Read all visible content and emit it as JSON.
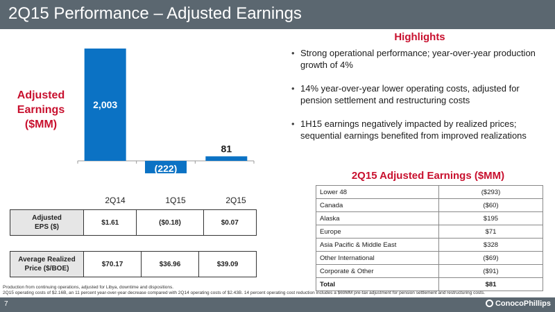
{
  "header": {
    "title": "2Q15 Performance – Adjusted Earnings"
  },
  "side_label": {
    "line1": "Adjusted",
    "line2": "Earnings",
    "line3": "($MM)"
  },
  "chart_data": {
    "type": "bar",
    "categories": [
      "2Q14",
      "1Q15",
      "2Q15"
    ],
    "values": [
      2003,
      -222,
      81
    ],
    "labels": [
      "2,003",
      "(222)",
      "81"
    ],
    "bar_color": "#0b72c4",
    "negative_label_color": "#ffffff",
    "ylim": [
      -222,
      2003
    ],
    "grid": false
  },
  "eps_table": {
    "header_line1": "Adjusted",
    "header_line2": "EPS ($)",
    "values": [
      "$1.61",
      "($0.18)",
      "$0.07"
    ]
  },
  "price_table": {
    "header_line1": "Average Realized",
    "header_line2": "Price ($/BOE)",
    "values": [
      "$70.17",
      "$36.96",
      "$39.09"
    ]
  },
  "highlights": {
    "title": "Highlights",
    "items": [
      "Strong operational performance; year-over-year production growth of 4%",
      "14% year-over-year lower operating costs, adjusted for pension settlement and restructuring costs",
      "1H15 earnings negatively impacted by realized prices; sequential earnings benefited from improved realizations"
    ]
  },
  "breakdown": {
    "title": "2Q15 Adjusted Earnings ($MM)",
    "rows": [
      {
        "label": "Lower 48",
        "value": "($293)"
      },
      {
        "label": "Canada",
        "value": "($60)"
      },
      {
        "label": "Alaska",
        "value": "$195"
      },
      {
        "label": "Europe",
        "value": "$71"
      },
      {
        "label": "Asia Pacific & Middle East",
        "value": "$328"
      },
      {
        "label": "Other International",
        "value": "($69)"
      },
      {
        "label": "Corporate & Other",
        "value": "($91)"
      },
      {
        "label": "Total",
        "value": "$81"
      }
    ]
  },
  "footnote": {
    "line1": "Production from continuing operations, adjusted for Libya, downtime and dispositions.",
    "line2": "2Q15 operating costs of $2.16B, an 11 percent year-over-year decrease compared with 2Q14 operating costs of $2.43B. 14 percent operating cost reduction includes a $69MM pre-tax adjustment for pension settlement and restructuring costs."
  },
  "footer": {
    "page_number": "7",
    "logo_text": "ConocoPhillips"
  },
  "colors": {
    "accent_red": "#c8102e",
    "bar_blue": "#0b72c4",
    "bar_slate": "#5b6770"
  }
}
